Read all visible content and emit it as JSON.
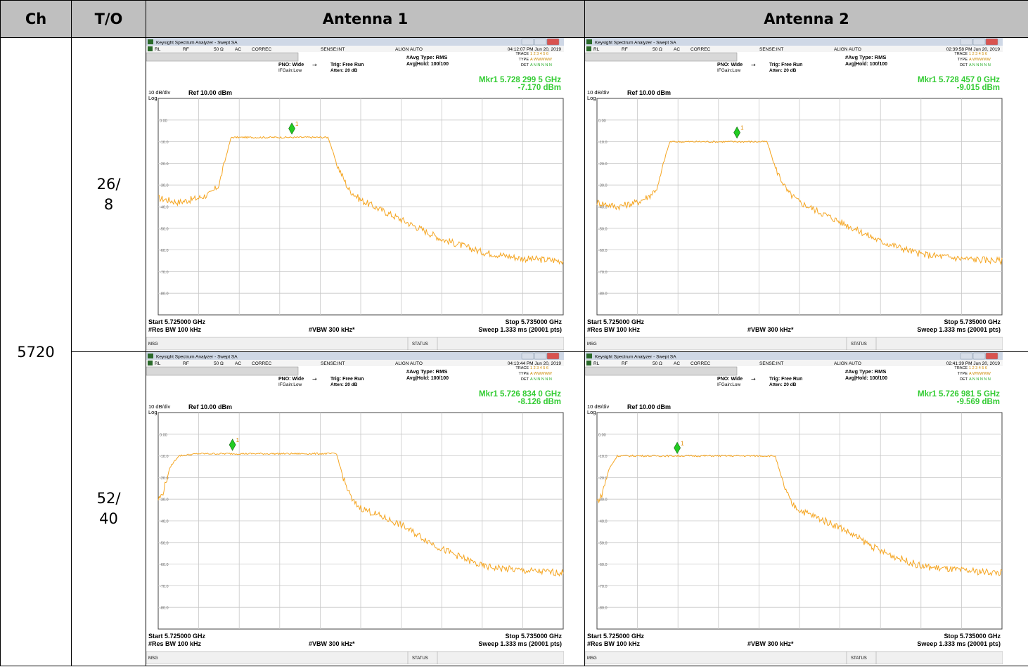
{
  "table": {
    "headers": [
      "Ch",
      "T/O",
      "Antenna 1",
      "Antenna 2"
    ],
    "channel": "5720",
    "rows": [
      {
        "to_line1": "26/",
        "to_line2": "8"
      },
      {
        "to_line1": "52/",
        "to_line2": "40"
      }
    ]
  },
  "colors": {
    "trace": "#f5a623",
    "marker": "#22cc22",
    "marker_readout": "#33cc33",
    "grid": "#c8c8c8",
    "header_bg": "#bfbfbf"
  },
  "shots": [
    {
      "titlebar": "Keysight Spectrum Analyzer - Swept SA",
      "status": {
        "rl": "RL",
        "rf": "RF",
        "ohm": "50 Ω",
        "ac": "AC",
        "correc": "CORREC",
        "sense": "SENSE:INT",
        "align": "ALIGN AUTO",
        "time": "04:12:07 PM Jun 20, 2019"
      },
      "settings": {
        "avg_type": "#Avg Type: RMS",
        "avg_hold": "Avg|Hold: 100/100",
        "pno": "PNO: Wide",
        "ifgain": "IFGain:Low",
        "trig": "Trig: Free Run",
        "atten": "Atten: 20 dB",
        "trace_lbl": "TRACE",
        "type_lbl": "TYPE",
        "det_lbl": "DET",
        "trace_nums": "1 2 3 4 5 6",
        "type_val": "A WWWWW",
        "det_val": "A N N N N N"
      },
      "marker": {
        "label": "Mkr1 5.728 299 5 GHz",
        "value": "-7.170 dBm",
        "num": "1"
      },
      "scale": {
        "div": "10 dB/div",
        "log": "Log",
        "ref": "Ref 10.00 dBm"
      },
      "yticks": [
        "0.00",
        "-10.0",
        "-20.0",
        "-30.0",
        "-40.0",
        "-50.0",
        "-60.0",
        "-70.0",
        "-80.0"
      ],
      "footer": {
        "start": "Start 5.725000 GHz",
        "rbw": "#Res BW 100 kHz",
        "vbw": "#VBW 300 kHz*",
        "stop": "Stop 5.735000 GHz",
        "sweep": "Sweep  1.333 ms (20001 pts)",
        "msg": "MSG",
        "statusbar": "STATUS"
      }
    },
    {
      "titlebar": "Keysight Spectrum Analyzer - Swept SA",
      "status": {
        "rl": "RL",
        "rf": "RF",
        "ohm": "50 Ω",
        "ac": "AC",
        "correc": "CORREC",
        "sense": "SENSE:INT",
        "align": "ALIGN AUTO",
        "time": "02:39:58 PM Jun 20, 2019"
      },
      "settings": {
        "avg_type": "#Avg Type: RMS",
        "avg_hold": "Avg|Hold: 100/100",
        "pno": "PNO: Wide",
        "ifgain": "IFGain:Low",
        "trig": "Trig: Free Run",
        "atten": "Atten: 20 dB",
        "trace_lbl": "TRACE",
        "type_lbl": "TYPE",
        "det_lbl": "DET",
        "trace_nums": "1 2 3 4 5 6",
        "type_val": "A WWWWW",
        "det_val": "A N N N N N"
      },
      "marker": {
        "label": "Mkr1 5.728 457 0 GHz",
        "value": "-9.015 dBm",
        "num": "1"
      },
      "scale": {
        "div": "10 dB/div",
        "log": "Log",
        "ref": "Ref 10.00 dBm"
      },
      "yticks": [
        "0.00",
        "-10.0",
        "-20.0",
        "-30.0",
        "-40.0",
        "-50.0",
        "-60.0",
        "-70.0",
        "-80.0"
      ],
      "footer": {
        "start": "Start 5.725000 GHz",
        "rbw": "#Res BW 100 kHz",
        "vbw": "#VBW 300 kHz*",
        "stop": "Stop 5.735000 GHz",
        "sweep": "Sweep  1.333 ms (20001 pts)",
        "msg": "MSG",
        "statusbar": "STATUS"
      }
    },
    {
      "titlebar": "Keysight Spectrum Analyzer - Swept SA",
      "status": {
        "rl": "RL",
        "rf": "RF",
        "ohm": "50 Ω",
        "ac": "AC",
        "correc": "CORREC",
        "sense": "SENSE:INT",
        "align": "ALIGN AUTO",
        "time": "04:13:44 PM Jun 20, 2019"
      },
      "settings": {
        "avg_type": "#Avg Type: RMS",
        "avg_hold": "Avg|Hold: 100/100",
        "pno": "PNO: Wide",
        "ifgain": "IFGain:Low",
        "trig": "Trig: Free Run",
        "atten": "Atten: 20 dB",
        "trace_lbl": "TRACE",
        "type_lbl": "TYPE",
        "det_lbl": "DET",
        "trace_nums": "1 2 3 4 5 6",
        "type_val": "A WWWWW",
        "det_val": "A N N N N N"
      },
      "marker": {
        "label": "Mkr1 5.726 834 0 GHz",
        "value": "-8.126 dBm",
        "num": "1"
      },
      "scale": {
        "div": "10 dB/div",
        "log": "Log",
        "ref": "Ref 10.00 dBm"
      },
      "yticks": [
        "0.00",
        "-10.0",
        "-20.0",
        "-30.0",
        "-40.0",
        "-50.0",
        "-60.0",
        "-70.0",
        "-80.0"
      ],
      "footer": {
        "start": "Start 5.725000 GHz",
        "rbw": "#Res BW 100 kHz",
        "vbw": "#VBW 300 kHz*",
        "stop": "Stop 5.735000 GHz",
        "sweep": "Sweep  1.333 ms (20001 pts)",
        "msg": "MSG",
        "statusbar": "STATUS"
      }
    },
    {
      "titlebar": "Keysight Spectrum Analyzer - Swept SA",
      "status": {
        "rl": "RL",
        "rf": "RF",
        "ohm": "50 Ω",
        "ac": "AC",
        "correc": "CORREC",
        "sense": "SENSE:INT",
        "align": "ALIGN AUTO",
        "time": "02:41:39 PM Jun 20, 2019"
      },
      "settings": {
        "avg_type": "#Avg Type: RMS",
        "avg_hold": "Avg|Hold: 100/100",
        "pno": "PNO: Wide",
        "ifgain": "IFGain:Low",
        "trig": "Trig: Free Run",
        "atten": "Atten: 20 dB",
        "trace_lbl": "TRACE",
        "type_lbl": "TYPE",
        "det_lbl": "DET",
        "trace_nums": "1 2 3 4 5 6",
        "type_val": "A WWWWW",
        "det_val": "A N N N N N"
      },
      "marker": {
        "label": "Mkr1 5.726 981 5 GHz",
        "value": "-9.569 dBm",
        "num": "1"
      },
      "scale": {
        "div": "10 dB/div",
        "log": "Log",
        "ref": "Ref 10.00 dBm"
      },
      "yticks": [
        "0.00",
        "-10.0",
        "-20.0",
        "-30.0",
        "-40.0",
        "-50.0",
        "-60.0",
        "-70.0",
        "-80.0"
      ],
      "footer": {
        "start": "Start 5.725000 GHz",
        "rbw": "#Res BW 100 kHz",
        "vbw": "#VBW 300 kHz*",
        "stop": "Stop 5.735000 GHz",
        "sweep": "Sweep  1.333 ms (20001 pts)",
        "msg": "MSG",
        "statusbar": "STATUS"
      }
    }
  ],
  "chart_data": [
    {
      "type": "line",
      "xlim": [
        5.725,
        5.735
      ],
      "ylim": [
        -90,
        10
      ],
      "grid": true,
      "series": [
        {
          "x": [
            5.725,
            5.7255,
            5.726,
            5.7263,
            5.7265,
            5.7267,
            5.7268,
            5.727,
            5.728,
            5.7285,
            5.729,
            5.7292,
            5.7294,
            5.7297,
            5.73,
            5.731,
            5.732,
            5.733,
            5.734,
            5.735
          ],
          "y": [
            -36,
            -38,
            -36,
            -34,
            -30,
            -15,
            -8,
            -8,
            -8,
            -8,
            -8,
            -8,
            -20,
            -32,
            -37,
            -46,
            -55,
            -61,
            -64,
            -65
          ]
        }
      ],
      "marker": {
        "x": 5.7282995,
        "y": -7.17
      }
    },
    {
      "type": "line",
      "xlim": [
        5.725,
        5.735
      ],
      "ylim": [
        -90,
        10
      ],
      "grid": true,
      "series": [
        {
          "x": [
            5.725,
            5.7255,
            5.726,
            5.7263,
            5.7265,
            5.7267,
            5.7268,
            5.727,
            5.728,
            5.7285,
            5.729,
            5.7292,
            5.7294,
            5.7297,
            5.73,
            5.731,
            5.732,
            5.733,
            5.734,
            5.735
          ],
          "y": [
            -38,
            -40,
            -38,
            -35,
            -31,
            -16,
            -10,
            -10,
            -10,
            -10,
            -10,
            -10,
            -22,
            -33,
            -38,
            -47,
            -56,
            -62,
            -64,
            -65
          ]
        }
      ],
      "marker": {
        "x": 5.728457,
        "y": -9.015
      }
    },
    {
      "type": "line",
      "xlim": [
        5.725,
        5.735
      ],
      "ylim": [
        -90,
        10
      ],
      "grid": true,
      "series": [
        {
          "x": [
            5.725,
            5.7251,
            5.7253,
            5.7255,
            5.726,
            5.727,
            5.728,
            5.729,
            5.7294,
            5.7296,
            5.7298,
            5.73,
            5.731,
            5.732,
            5.733,
            5.734,
            5.735
          ],
          "y": [
            -30,
            -28,
            -15,
            -10,
            -9,
            -9,
            -9,
            -9,
            -9,
            -22,
            -31,
            -34,
            -42,
            -53,
            -61,
            -63,
            -64
          ]
        }
      ],
      "marker": {
        "x": 5.726834,
        "y": -8.126
      }
    },
    {
      "type": "line",
      "xlim": [
        5.725,
        5.735
      ],
      "ylim": [
        -90,
        10
      ],
      "grid": true,
      "series": [
        {
          "x": [
            5.725,
            5.7251,
            5.7253,
            5.7255,
            5.726,
            5.727,
            5.728,
            5.729,
            5.7294,
            5.7296,
            5.7298,
            5.73,
            5.731,
            5.732,
            5.733,
            5.734,
            5.735
          ],
          "y": [
            -31,
            -29,
            -16,
            -10,
            -10,
            -10,
            -10,
            -10,
            -10,
            -23,
            -32,
            -35,
            -43,
            -54,
            -61,
            -63,
            -64
          ]
        }
      ],
      "marker": {
        "x": 5.7269815,
        "y": -9.569
      }
    }
  ]
}
